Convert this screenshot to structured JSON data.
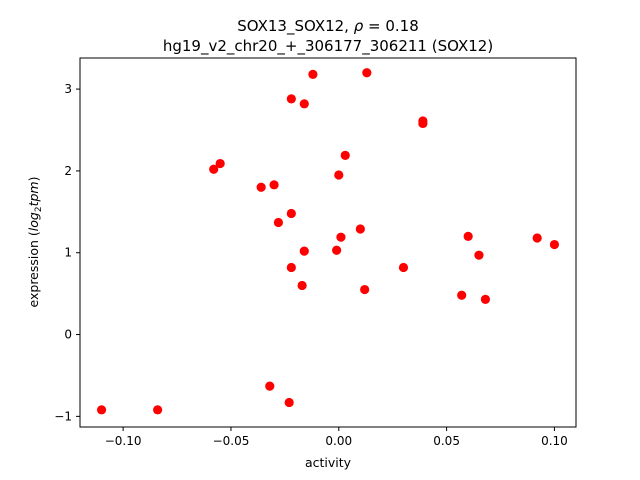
{
  "chart_data": {
    "type": "scatter",
    "title_line1_prefix": "SOX13_SOX12, ",
    "title_line1_rho": "ρ",
    "title_line1_suffix": " = 0.18",
    "title_line2": "hg19_v2_chr20_+_306177_306211 (SOX12)",
    "xlabel": "activity",
    "ylabel_prefix": "expression (",
    "ylabel_log": "log",
    "ylabel_sub": "2",
    "ylabel_tpm": "tpm",
    "ylabel_suffix": ")",
    "xlim": [
      -0.12,
      0.11
    ],
    "ylim": [
      -1.13,
      3.38
    ],
    "x_ticks": [
      {
        "value": -0.1,
        "label": "−0.10"
      },
      {
        "value": -0.05,
        "label": "−0.05"
      },
      {
        "value": 0.0,
        "label": "0.00"
      },
      {
        "value": 0.05,
        "label": "0.05"
      },
      {
        "value": 0.1,
        "label": "0.10"
      }
    ],
    "y_ticks": [
      {
        "value": -1,
        "label": "−1"
      },
      {
        "value": 0,
        "label": "0"
      },
      {
        "value": 1,
        "label": "1"
      },
      {
        "value": 2,
        "label": "2"
      },
      {
        "value": 3,
        "label": "3"
      }
    ],
    "marker_color": "#ff0000",
    "points": [
      {
        "x": -0.11,
        "y": -0.92
      },
      {
        "x": -0.084,
        "y": -0.92
      },
      {
        "x": -0.058,
        "y": 2.02
      },
      {
        "x": -0.055,
        "y": 2.09
      },
      {
        "x": -0.036,
        "y": 1.8
      },
      {
        "x": -0.03,
        "y": 1.83
      },
      {
        "x": -0.032,
        "y": -0.63
      },
      {
        "x": -0.028,
        "y": 1.37
      },
      {
        "x": -0.022,
        "y": 2.88
      },
      {
        "x": -0.022,
        "y": 1.48
      },
      {
        "x": -0.022,
        "y": 0.82
      },
      {
        "x": -0.023,
        "y": -0.83
      },
      {
        "x": -0.016,
        "y": 2.82
      },
      {
        "x": -0.016,
        "y": 1.02
      },
      {
        "x": -0.017,
        "y": 0.6
      },
      {
        "x": -0.012,
        "y": 3.18
      },
      {
        "x": 0.0,
        "y": 1.95
      },
      {
        "x": 0.001,
        "y": 1.19
      },
      {
        "x": -0.001,
        "y": 1.03
      },
      {
        "x": 0.003,
        "y": 2.19
      },
      {
        "x": 0.01,
        "y": 1.29
      },
      {
        "x": 0.013,
        "y": 3.2
      },
      {
        "x": 0.012,
        "y": 0.55
      },
      {
        "x": 0.03,
        "y": 0.82
      },
      {
        "x": 0.039,
        "y": 2.58
      },
      {
        "x": 0.039,
        "y": 2.61
      },
      {
        "x": 0.057,
        "y": 0.48
      },
      {
        "x": 0.06,
        "y": 1.2
      },
      {
        "x": 0.065,
        "y": 0.97
      },
      {
        "x": 0.068,
        "y": 0.43
      },
      {
        "x": 0.092,
        "y": 1.18
      },
      {
        "x": 0.1,
        "y": 1.1
      }
    ]
  }
}
